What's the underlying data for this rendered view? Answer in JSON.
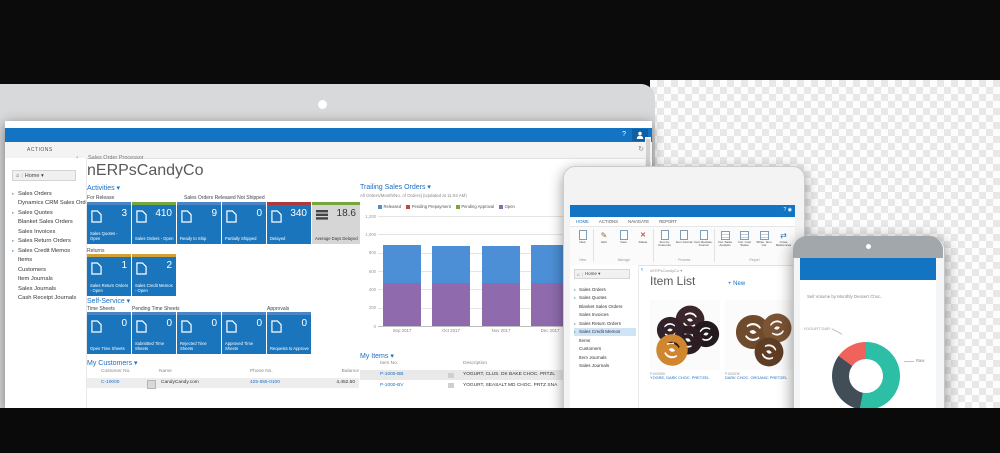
{
  "desktop": {
    "titlebar": {
      "help_icon": "?",
      "refresh_icon": "↻"
    },
    "ribbon_tab": "ACTIONS",
    "collapse_glyph": "‹",
    "breadcrumb": "Sales Order Processor",
    "title": "nERPsCandyCo",
    "nav": {
      "home_icon": "⌂",
      "home": "Home ▾",
      "items": [
        {
          "arrow": "▸",
          "label": "Sales Orders"
        },
        {
          "arrow": "",
          "label": "Dynamics CRM Sales Orders"
        },
        {
          "arrow": "▸",
          "label": "Sales Quotes"
        },
        {
          "arrow": "",
          "label": "Blanket Sales Orders"
        },
        {
          "arrow": "",
          "label": "Sales Invoices"
        },
        {
          "arrow": "▸",
          "label": "Sales Return Orders"
        },
        {
          "arrow": "▸",
          "label": "Sales Credit Memos"
        },
        {
          "arrow": "",
          "label": "Items"
        },
        {
          "arrow": "",
          "label": "Customers"
        },
        {
          "arrow": "",
          "label": "Item Journals"
        },
        {
          "arrow": "",
          "label": "Sales Journals"
        },
        {
          "arrow": "",
          "label": "Cash Receipt Journals"
        }
      ]
    },
    "activities_label": "Activities ▾",
    "groups_row1": [
      {
        "label": "For Release"
      },
      {
        "label": "Sales Orders Released Not Shipped"
      }
    ],
    "tiles_row1": [
      {
        "value": "3",
        "label": "Sales Quotes - Open",
        "accent": "#4a86c5",
        "gray": false
      },
      {
        "value": "410",
        "label": "Sales Orders - Open",
        "accent": "#76a73c",
        "gray": false
      },
      {
        "value": "9",
        "label": "Ready to Ship",
        "accent": "#4a86c5",
        "gray": false
      },
      {
        "value": "0",
        "label": "Partially Shipped",
        "accent": "#4a86c5",
        "gray": false
      },
      {
        "value": "340",
        "label": "Delayed",
        "accent": "#b0393b",
        "gray": false
      },
      {
        "value": "18.6",
        "label": "Average Days Delayed",
        "accent": "#76a73c",
        "gray": true
      }
    ],
    "returns_label": "Returns",
    "tiles_row2": [
      {
        "value": "1",
        "label": "Sales Return Orders - Open",
        "accent": "#cfa136",
        "gray": false
      },
      {
        "value": "2",
        "label": "Sales Credit Memos - Open",
        "accent": "#cfa136",
        "gray": false
      }
    ],
    "self_service_label": "Self-Service ▾",
    "groups_row3": [
      "Time Sheets",
      "Pending Time Sheets",
      "Approvals"
    ],
    "tiles_row3": [
      {
        "value": "0",
        "label": "Open Time Sheets",
        "accent": "#4a86c5",
        "gray": false
      },
      {
        "value": "0",
        "label": "Submitted Time Sheets",
        "accent": "#4a86c5",
        "gray": false
      },
      {
        "value": "0",
        "label": "Rejected Time Sheets",
        "accent": "#4a86c5",
        "gray": false
      },
      {
        "value": "0",
        "label": "Approved Time Sheets",
        "accent": "#4a86c5",
        "gray": false
      },
      {
        "value": "0",
        "label": "Requests to Approve",
        "accent": "#4a86c5",
        "gray": false
      }
    ],
    "my_customers": {
      "label": "My Customers ▾",
      "headers": [
        "Customer No.",
        "Name",
        "Phone No.",
        "Balance"
      ],
      "rows": [
        [
          "C-10000",
          "CandyCandy.com",
          "425-555-0100",
          "4,452.50"
        ]
      ]
    },
    "my_items": {
      "label": "My Items ▾",
      "headers": [
        "Item No.",
        "Description"
      ],
      "rows": [
        [
          "P-1000-BB",
          "YOGURT, CLUS. DK BAKE CHOC. PRTZL"
        ],
        [
          "P-1000-BV",
          "YOGURT, SEASALT MD CHOC. PRTZ SNA"
        ]
      ]
    }
  },
  "chart_data": [
    {
      "type": "bar",
      "stacked": true,
      "title": "Trailing Sales Orders ▾",
      "subtitle": "All Orders/Month/No. of Orders] (Updated at 11:04 AM)",
      "categories": [
        "Sep 2017",
        "Oct 2017",
        "Nov 2017",
        "Dec 2017"
      ],
      "series": [
        {
          "name": "Open",
          "color": "#8f6bae",
          "values": [
            470,
            468,
            465,
            472
          ]
        },
        {
          "name": "Released",
          "color": "#4d8fd6",
          "values": [
            410,
            408,
            412,
            408
          ]
        }
      ],
      "legend": [
        {
          "label": "Released",
          "color": "#4d8fd6"
        },
        {
          "label": "Pending Prepayment",
          "color": "#b94a48"
        },
        {
          "label": "Pending Approval",
          "color": "#76a73c"
        },
        {
          "label": "Open",
          "color": "#8f6bae"
        }
      ],
      "ylim": [
        0,
        1200
      ],
      "ytick_step": 200,
      "grid": true,
      "legend_position": "top"
    },
    {
      "type": "pie",
      "title": "Sell Volume by Monthly Dessert Choc.",
      "labels": [
        "Raw",
        "",
        "YOGURT DAR"
      ],
      "values": [
        53,
        32,
        15
      ],
      "colors": [
        "#2cbfa5",
        "#414e57",
        "#f0625c"
      ],
      "callouts": {
        "left": "YOGURT DAR",
        "right": "Raw"
      }
    }
  ],
  "tablet": {
    "tabs": [
      {
        "label": "HOME",
        "active": true
      },
      {
        "label": "ACTIONS",
        "active": false
      },
      {
        "label": "NAVIGATE",
        "active": false
      },
      {
        "label": "REPORT",
        "active": false
      }
    ],
    "ribbon_groups": [
      {
        "label": "New",
        "items": [
          {
            "icon": "doc",
            "label": "New"
          }
        ]
      },
      {
        "label": "Manage",
        "items": [
          {
            "icon": "pencil",
            "label": "Edit"
          },
          {
            "icon": "doc",
            "label": "View"
          },
          {
            "icon": "x",
            "label": "Delete"
          }
        ]
      },
      {
        "label": "Process",
        "items": [
          {
            "icon": "doc",
            "label": "Item by Customer"
          },
          {
            "icon": "doc",
            "label": "Item Journal"
          },
          {
            "icon": "doc",
            "label": "Item Reclass. Journal"
          }
        ]
      },
      {
        "label": "Report",
        "items": [
          {
            "icon": "grid",
            "label": "Invt. Sales Analysis"
          },
          {
            "icon": "grid",
            "label": "Invt. Cost Status"
          },
          {
            "icon": "grid",
            "label": "Whse. Item List"
          },
          {
            "icon": "arrows",
            "label": "Cross References"
          }
        ]
      }
    ],
    "titlebar_icons": "? ◉",
    "nav": {
      "home_icon": "⌂",
      "home": "Home ▾",
      "selected_index": 5,
      "items": [
        {
          "arrow": "▸",
          "label": "Sales Orders"
        },
        {
          "arrow": "▸",
          "label": "Sales Quotes"
        },
        {
          "arrow": "",
          "label": "Blanket Sales Orders"
        },
        {
          "arrow": "",
          "label": "Sales Invoices"
        },
        {
          "arrow": "▸",
          "label": "Sales Return Orders"
        },
        {
          "arrow": "▸",
          "label": "Sales Credit Memos"
        },
        {
          "arrow": "",
          "label": "Items"
        },
        {
          "arrow": "",
          "label": "Customers"
        },
        {
          "arrow": "",
          "label": "Item Journals"
        },
        {
          "arrow": "",
          "label": "Sales Journals"
        }
      ]
    },
    "collapse_glyph": "‹",
    "breadcrumb": "nERPsCandyCo ▾",
    "title": "Item List",
    "new_link": "+ New",
    "cards": [
      {
        "no": "P1000BB",
        "desc": "YOGRE, DARK CHOC. PRETZEL",
        "style": "dark"
      },
      {
        "no": "P1000DK",
        "desc": "DARK CHOC. ORGANIC PRETZEL",
        "style": "milk"
      }
    ]
  }
}
